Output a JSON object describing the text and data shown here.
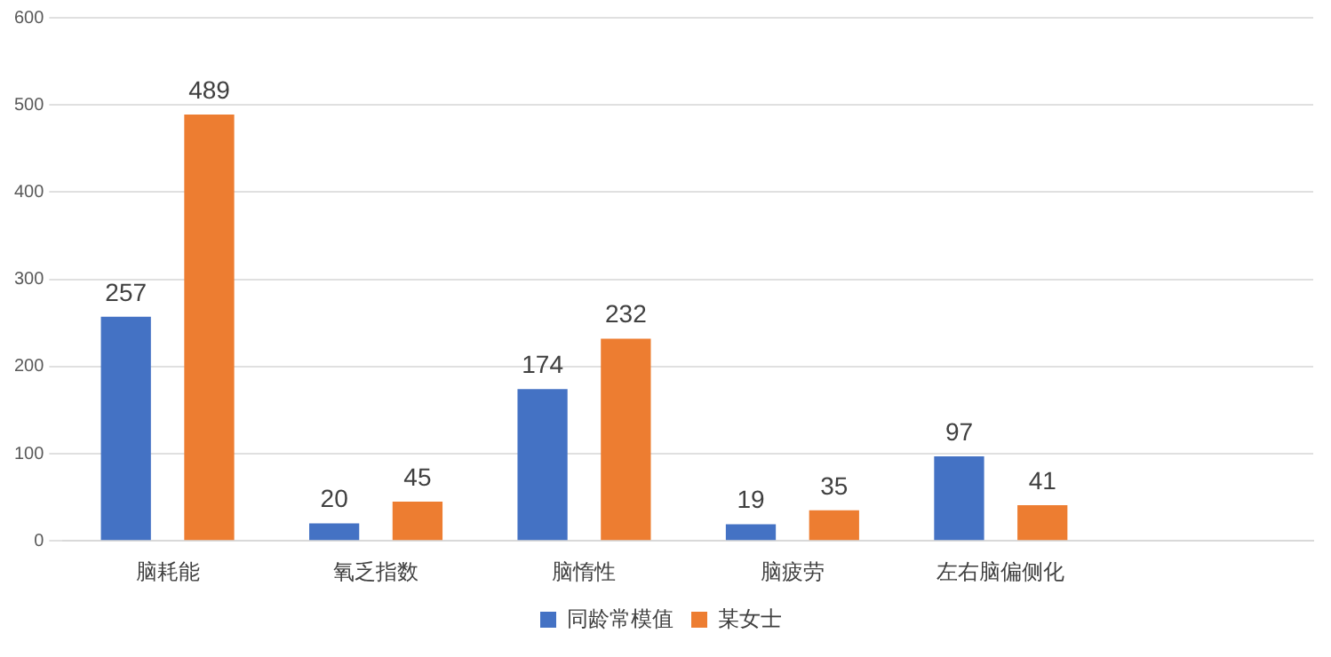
{
  "chart_data": {
    "type": "bar",
    "categories": [
      "脑耗能",
      "氧乏指数",
      "脑惰性",
      "脑疲劳",
      "左右脑偏侧化",
      null
    ],
    "series": [
      {
        "name": "同龄常模值",
        "color": "#4472c4",
        "values": [
          257,
          20,
          174,
          19,
          97,
          null
        ]
      },
      {
        "name": "某女士",
        "color": "#ed7d31",
        "values": [
          489,
          45,
          232,
          35,
          41,
          null
        ]
      }
    ],
    "ylim": [
      0,
      600
    ],
    "yticks": [
      0,
      100,
      200,
      300,
      400,
      500,
      600
    ],
    "grid": "y",
    "legend": "bottom",
    "data_labels": true
  }
}
